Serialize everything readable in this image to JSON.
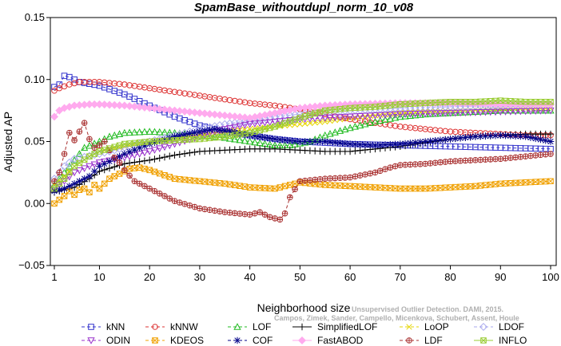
{
  "chart_data": {
    "type": "line",
    "title": "SpamBase_withoutdupl_norm_10_v08",
    "xlabel": "Neighborhood size",
    "ylabel": "Adjusted AP",
    "xlim": [
      1,
      100
    ],
    "ylim": [
      -0.05,
      0.15
    ],
    "xticks": [
      1,
      10,
      20,
      30,
      40,
      50,
      60,
      70,
      80,
      90,
      100
    ],
    "yticks": [
      -0.05,
      0.0,
      0.05,
      0.1,
      0.15
    ],
    "ytick_labels": [
      "−0.05",
      "0.00",
      "0.05",
      "0.10",
      "0.15"
    ],
    "grid": false,
    "legend_position": "bottom",
    "watermark": [
      "Campos, Zimek, Sander, Campello, Micenkova, Schubert, Assent, Houle",
      "Unsupervised Outlier Detection. DAMI, 2015."
    ],
    "series": [
      {
        "name": "kNN",
        "color": "#3333cc",
        "marker": "square",
        "dash": "4,3",
        "points": [
          [
            1,
            0.094
          ],
          [
            2,
            0.096
          ],
          [
            3,
            0.103
          ],
          [
            4,
            0.102
          ],
          [
            6,
            0.098
          ],
          [
            10,
            0.095
          ],
          [
            15,
            0.088
          ],
          [
            20,
            0.079
          ],
          [
            25,
            0.07
          ],
          [
            30,
            0.063
          ],
          [
            35,
            0.058
          ],
          [
            40,
            0.055
          ],
          [
            45,
            0.052
          ],
          [
            50,
            0.05
          ],
          [
            55,
            0.049
          ],
          [
            60,
            0.048
          ],
          [
            70,
            0.047
          ],
          [
            80,
            0.046
          ],
          [
            90,
            0.045
          ],
          [
            100,
            0.044
          ]
        ]
      },
      {
        "name": "kNNW",
        "color": "#dd3333",
        "marker": "circle",
        "dash": "4,3",
        "points": [
          [
            1,
            0.091
          ],
          [
            2,
            0.093
          ],
          [
            4,
            0.096
          ],
          [
            6,
            0.098
          ],
          [
            10,
            0.098
          ],
          [
            15,
            0.096
          ],
          [
            20,
            0.093
          ],
          [
            25,
            0.09
          ],
          [
            30,
            0.087
          ],
          [
            35,
            0.084
          ],
          [
            40,
            0.081
          ],
          [
            45,
            0.079
          ],
          [
            50,
            0.076
          ],
          [
            55,
            0.072
          ],
          [
            60,
            0.068
          ],
          [
            65,
            0.065
          ],
          [
            70,
            0.062
          ],
          [
            75,
            0.06
          ],
          [
            80,
            0.058
          ],
          [
            85,
            0.057
          ],
          [
            90,
            0.056
          ],
          [
            95,
            0.055
          ],
          [
            100,
            0.055
          ]
        ]
      },
      {
        "name": "LOF",
        "color": "#22bb22",
        "marker": "triangle",
        "dash": "4,3",
        "points": [
          [
            1,
            0.015
          ],
          [
            3,
            0.025
          ],
          [
            5,
            0.035
          ],
          [
            7,
            0.045
          ],
          [
            10,
            0.05
          ],
          [
            12,
            0.054
          ],
          [
            15,
            0.057
          ],
          [
            20,
            0.058
          ],
          [
            25,
            0.057
          ],
          [
            30,
            0.055
          ],
          [
            35,
            0.053
          ],
          [
            40,
            0.05
          ],
          [
            45,
            0.047
          ],
          [
            48,
            0.047
          ],
          [
            52,
            0.05
          ],
          [
            55,
            0.055
          ],
          [
            60,
            0.061
          ],
          [
            65,
            0.066
          ],
          [
            70,
            0.07
          ],
          [
            75,
            0.072
          ],
          [
            80,
            0.073
          ],
          [
            85,
            0.074
          ],
          [
            90,
            0.075
          ],
          [
            95,
            0.075
          ],
          [
            100,
            0.075
          ]
        ]
      },
      {
        "name": "SimplifiedLOF",
        "color": "#000000",
        "marker": "plus",
        "dash": "",
        "points": [
          [
            1,
            0.009
          ],
          [
            5,
            0.013
          ],
          [
            8,
            0.02
          ],
          [
            10,
            0.026
          ],
          [
            15,
            0.032
          ],
          [
            20,
            0.035
          ],
          [
            25,
            0.039
          ],
          [
            30,
            0.042
          ],
          [
            35,
            0.043
          ],
          [
            40,
            0.044
          ],
          [
            45,
            0.044
          ],
          [
            50,
            0.043
          ],
          [
            55,
            0.042
          ],
          [
            60,
            0.042
          ],
          [
            65,
            0.044
          ],
          [
            70,
            0.046
          ],
          [
            75,
            0.049
          ],
          [
            80,
            0.052
          ],
          [
            85,
            0.054
          ],
          [
            90,
            0.055
          ],
          [
            95,
            0.056
          ],
          [
            100,
            0.056
          ]
        ]
      },
      {
        "name": "LoOP",
        "color": "#e6d600",
        "marker": "x",
        "dash": "4,3",
        "points": [
          [
            1,
            0.015
          ],
          [
            3,
            0.022
          ],
          [
            5,
            0.03
          ],
          [
            8,
            0.038
          ],
          [
            10,
            0.042
          ],
          [
            15,
            0.046
          ],
          [
            20,
            0.05
          ],
          [
            25,
            0.052
          ],
          [
            30,
            0.055
          ],
          [
            35,
            0.058
          ],
          [
            40,
            0.06
          ],
          [
            45,
            0.062
          ],
          [
            50,
            0.064
          ],
          [
            55,
            0.066
          ],
          [
            60,
            0.069
          ],
          [
            65,
            0.071
          ],
          [
            70,
            0.073
          ],
          [
            75,
            0.074
          ],
          [
            80,
            0.075
          ],
          [
            90,
            0.076
          ],
          [
            100,
            0.077
          ]
        ]
      },
      {
        "name": "LDOF",
        "color": "#aaaaee",
        "marker": "diamond",
        "dash": "4,3",
        "points": [
          [
            1,
            0.02
          ],
          [
            3,
            0.03
          ],
          [
            5,
            0.036
          ],
          [
            10,
            0.04
          ],
          [
            15,
            0.045
          ],
          [
            20,
            0.05
          ],
          [
            25,
            0.055
          ],
          [
            30,
            0.06
          ],
          [
            35,
            0.064
          ],
          [
            40,
            0.067
          ],
          [
            45,
            0.07
          ],
          [
            50,
            0.072
          ],
          [
            55,
            0.074
          ],
          [
            60,
            0.075
          ],
          [
            65,
            0.076
          ],
          [
            70,
            0.077
          ],
          [
            80,
            0.078
          ],
          [
            90,
            0.079
          ],
          [
            100,
            0.08
          ]
        ]
      },
      {
        "name": "ODIN",
        "color": "#9933cc",
        "marker": "triangle-down",
        "dash": "4,3",
        "points": [
          [
            1,
            0.012
          ],
          [
            3,
            0.018
          ],
          [
            5,
            0.025
          ],
          [
            8,
            0.03
          ],
          [
            10,
            0.033
          ],
          [
            15,
            0.037
          ],
          [
            20,
            0.042
          ],
          [
            25,
            0.048
          ],
          [
            30,
            0.054
          ],
          [
            35,
            0.06
          ],
          [
            40,
            0.064
          ],
          [
            45,
            0.066
          ],
          [
            50,
            0.068
          ],
          [
            55,
            0.069
          ],
          [
            60,
            0.07
          ],
          [
            65,
            0.071
          ],
          [
            70,
            0.072
          ],
          [
            80,
            0.073
          ],
          [
            90,
            0.074
          ],
          [
            100,
            0.075
          ]
        ]
      },
      {
        "name": "KDEOS",
        "color": "#f0a000",
        "marker": "square-x",
        "dash": "4,3",
        "points": [
          [
            1,
            0.0
          ],
          [
            2,
            0.003
          ],
          [
            3,
            0.006
          ],
          [
            4,
            0.01
          ],
          [
            5,
            0.007
          ],
          [
            6,
            0.011
          ],
          [
            7,
            0.012
          ],
          [
            8,
            0.009
          ],
          [
            9,
            0.015
          ],
          [
            10,
            0.012
          ],
          [
            12,
            0.02
          ],
          [
            14,
            0.024
          ],
          [
            16,
            0.028
          ],
          [
            18,
            0.029
          ],
          [
            20,
            0.027
          ],
          [
            25,
            0.02
          ],
          [
            30,
            0.018
          ],
          [
            35,
            0.016
          ],
          [
            40,
            0.013
          ],
          [
            45,
            0.012
          ],
          [
            48,
            0.015
          ],
          [
            50,
            0.017
          ],
          [
            55,
            0.015
          ],
          [
            60,
            0.014
          ],
          [
            65,
            0.013
          ],
          [
            70,
            0.012
          ],
          [
            75,
            0.012
          ],
          [
            80,
            0.013
          ],
          [
            85,
            0.014
          ],
          [
            90,
            0.016
          ],
          [
            95,
            0.017
          ],
          [
            100,
            0.018
          ]
        ]
      },
      {
        "name": "COF",
        "color": "#000088",
        "marker": "asterisk",
        "dash": "4,3",
        "points": [
          [
            1,
            0.01
          ],
          [
            3,
            0.012
          ],
          [
            5,
            0.016
          ],
          [
            8,
            0.022
          ],
          [
            10,
            0.03
          ],
          [
            15,
            0.04
          ],
          [
            20,
            0.048
          ],
          [
            25,
            0.054
          ],
          [
            30,
            0.058
          ],
          [
            33,
            0.06
          ],
          [
            36,
            0.058
          ],
          [
            40,
            0.055
          ],
          [
            45,
            0.052
          ],
          [
            50,
            0.05
          ],
          [
            55,
            0.05
          ],
          [
            60,
            0.048
          ],
          [
            65,
            0.047
          ],
          [
            70,
            0.048
          ],
          [
            75,
            0.05
          ],
          [
            80,
            0.052
          ],
          [
            85,
            0.054
          ],
          [
            90,
            0.055
          ],
          [
            95,
            0.054
          ],
          [
            100,
            0.05
          ]
        ]
      },
      {
        "name": "FastABOD",
        "color": "#ffaaee",
        "marker": "diamond-filled",
        "dash": "",
        "points": [
          [
            1,
            0.07
          ],
          [
            2,
            0.075
          ],
          [
            3,
            0.077
          ],
          [
            5,
            0.079
          ],
          [
            8,
            0.08
          ],
          [
            10,
            0.08
          ],
          [
            15,
            0.079
          ],
          [
            20,
            0.077
          ],
          [
            25,
            0.075
          ],
          [
            30,
            0.073
          ],
          [
            35,
            0.071
          ],
          [
            40,
            0.069
          ],
          [
            45,
            0.073
          ],
          [
            50,
            0.077
          ],
          [
            55,
            0.079
          ],
          [
            60,
            0.08
          ],
          [
            70,
            0.081
          ],
          [
            80,
            0.081
          ],
          [
            90,
            0.08
          ],
          [
            100,
            0.08
          ]
        ]
      },
      {
        "name": "LDF",
        "color": "#aa3333",
        "marker": "circle-plus",
        "dash": "4,3",
        "points": [
          [
            1,
            0.018
          ],
          [
            2,
            0.025
          ],
          [
            3,
            0.04
          ],
          [
            4,
            0.057
          ],
          [
            5,
            0.051
          ],
          [
            6,
            0.058
          ],
          [
            7,
            0.065
          ],
          [
            8,
            0.052
          ],
          [
            9,
            0.045
          ],
          [
            10,
            0.047
          ],
          [
            11,
            0.05
          ],
          [
            12,
            0.043
          ],
          [
            13,
            0.037
          ],
          [
            14,
            0.033
          ],
          [
            15,
            0.027
          ],
          [
            17,
            0.018
          ],
          [
            20,
            0.012
          ],
          [
            25,
            0.002
          ],
          [
            30,
            -0.004
          ],
          [
            35,
            -0.007
          ],
          [
            40,
            -0.009
          ],
          [
            42,
            -0.007
          ],
          [
            44,
            -0.011
          ],
          [
            46,
            -0.013
          ],
          [
            47,
            -0.008
          ],
          [
            48,
            0.005
          ],
          [
            50,
            0.018
          ],
          [
            55,
            0.02
          ],
          [
            60,
            0.021
          ],
          [
            65,
            0.025
          ],
          [
            68,
            0.029
          ],
          [
            70,
            0.031
          ],
          [
            75,
            0.032
          ],
          [
            80,
            0.034
          ],
          [
            85,
            0.035
          ],
          [
            90,
            0.036
          ],
          [
            95,
            0.038
          ],
          [
            100,
            0.04
          ]
        ]
      },
      {
        "name": "INFLO",
        "color": "#99cc33",
        "marker": "square-x",
        "dash": "",
        "points": [
          [
            1,
            0.012
          ],
          [
            3,
            0.02
          ],
          [
            5,
            0.03
          ],
          [
            8,
            0.038
          ],
          [
            10,
            0.042
          ],
          [
            15,
            0.048
          ],
          [
            20,
            0.05
          ],
          [
            25,
            0.051
          ],
          [
            30,
            0.052
          ],
          [
            35,
            0.054
          ],
          [
            40,
            0.057
          ],
          [
            45,
            0.062
          ],
          [
            50,
            0.069
          ],
          [
            55,
            0.075
          ],
          [
            60,
            0.077
          ],
          [
            65,
            0.078
          ],
          [
            70,
            0.08
          ],
          [
            75,
            0.081
          ],
          [
            80,
            0.082
          ],
          [
            85,
            0.082
          ],
          [
            90,
            0.083
          ],
          [
            95,
            0.082
          ],
          [
            100,
            0.082
          ]
        ]
      }
    ]
  }
}
